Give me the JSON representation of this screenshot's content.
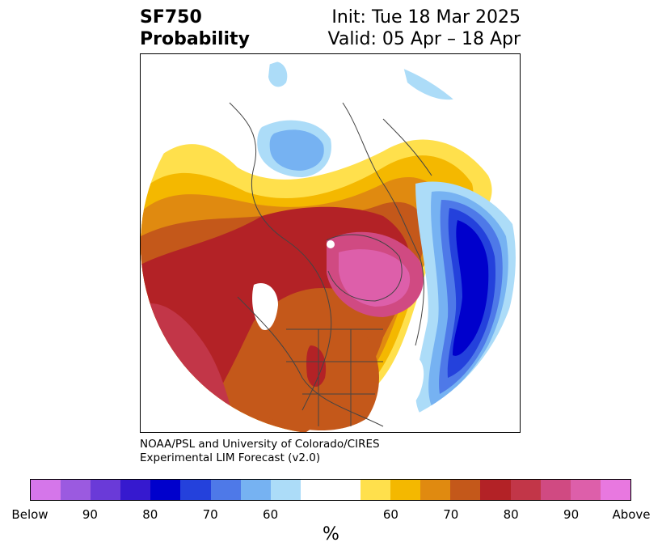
{
  "title": {
    "left_line1": "SF750",
    "left_line2": "Probability",
    "right_line1": "Init: Tue 18 Mar 2025",
    "right_line2": "Valid: 05 Apr – 18 Apr"
  },
  "credit": {
    "line1": "NOAA/PSL and University of Colorado/CIRES",
    "line2": "Experimental LIM Forecast (v2.0)"
  },
  "colorbar": {
    "unit": "%",
    "segments": [
      {
        "color": "#d576ea"
      },
      {
        "color": "#9b5ae0"
      },
      {
        "color": "#6a3ad8"
      },
      {
        "color": "#3619cf"
      },
      {
        "color": "#0000cc"
      },
      {
        "color": "#2441dc"
      },
      {
        "color": "#4e79e8"
      },
      {
        "color": "#76b2f2"
      },
      {
        "color": "#acdcf8"
      },
      {
        "color": "#ffffff",
        "wide": true
      },
      {
        "color": "#ffe04c"
      },
      {
        "color": "#f4b800"
      },
      {
        "color": "#e08a10"
      },
      {
        "color": "#c4581a"
      },
      {
        "color": "#b32226"
      },
      {
        "color": "#c23648"
      },
      {
        "color": "#d04a82"
      },
      {
        "color": "#dd5faa"
      },
      {
        "color": "#e878e0"
      }
    ],
    "tick_labels": [
      {
        "text": "Below",
        "frac": 0.0
      },
      {
        "text": "90",
        "frac": 0.1
      },
      {
        "text": "80",
        "frac": 0.2
      },
      {
        "text": "70",
        "frac": 0.3
      },
      {
        "text": "60",
        "frac": 0.4
      },
      {
        "text": "60",
        "frac": 0.6
      },
      {
        "text": "70",
        "frac": 0.7
      },
      {
        "text": "80",
        "frac": 0.8
      },
      {
        "text": "90",
        "frac": 0.9
      },
      {
        "text": "Above",
        "frac": 1.0
      }
    ]
  }
}
